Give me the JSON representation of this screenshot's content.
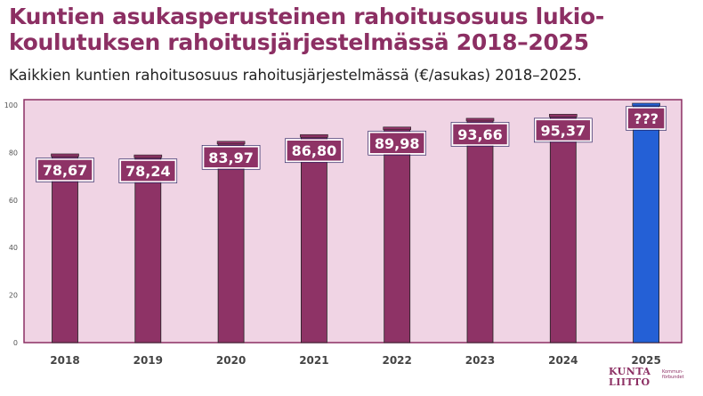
{
  "title": "Kuntien asukasperusteinen rahoitusosuus lukio-koulutuksen rahoitusjärjestelmässä 2018–2025",
  "subtitle": "Kaikkien kuntien rahoitusosuus rahoitusjärjestelmässä (€/asukas) 2018–2025.",
  "colors": {
    "title": "#8c2f63",
    "bar": "#8e3366",
    "bar_highlight": "#2460d6",
    "plot_background": "#f0d4e4",
    "plot_border": "#8c2f63",
    "label_box": "#8e3366"
  },
  "chart_data": {
    "type": "bar",
    "categories": [
      "2018",
      "2019",
      "2020",
      "2021",
      "2022",
      "2023",
      "2024",
      "2025"
    ],
    "values": [
      78.67,
      78.24,
      83.97,
      86.8,
      89.98,
      93.66,
      95.37,
      100
    ],
    "data_labels": [
      "78,67",
      "78,24",
      "83,97",
      "86,80",
      "89,98",
      "93,66",
      "95,37",
      "???"
    ],
    "highlight_index": 7,
    "ylim": [
      0,
      100
    ],
    "yticks": [
      0,
      20,
      40,
      60,
      80,
      100
    ],
    "xlabel": "",
    "ylabel": "",
    "grid": false
  },
  "logo": {
    "line1": "KUNTA",
    "line2": "LIITTO",
    "sub1": "Kommun-",
    "sub2": "förbundet"
  }
}
